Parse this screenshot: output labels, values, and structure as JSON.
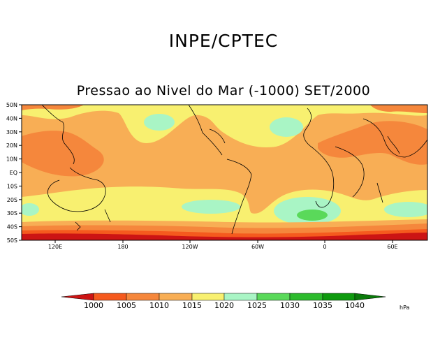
{
  "header": {
    "title": "INPE/CPTEC"
  },
  "map": {
    "title": "Pressao ao Nivel do Mar (-1000) SET/2000",
    "lat_labels": [
      "50N",
      "40N",
      "30N",
      "20N",
      "10N",
      "EQ",
      "10S",
      "20S",
      "30S",
      "40S",
      "50S"
    ],
    "lon_labels": [
      "120E",
      "180",
      "120W",
      "60W",
      "0",
      "60E"
    ]
  },
  "colorbar": {
    "unit": "hPa",
    "levels": [
      "1000",
      "1005",
      "1010",
      "1015",
      "1020",
      "1025",
      "1030",
      "1035",
      "1040"
    ],
    "colors": [
      "#cc1414",
      "#f55a1e",
      "#f5873c",
      "#f8ae55",
      "#f8f070",
      "#a9f5c5",
      "#5ad95a",
      "#2dbb2d",
      "#0e9a0e",
      "#0a7a0a"
    ]
  }
}
